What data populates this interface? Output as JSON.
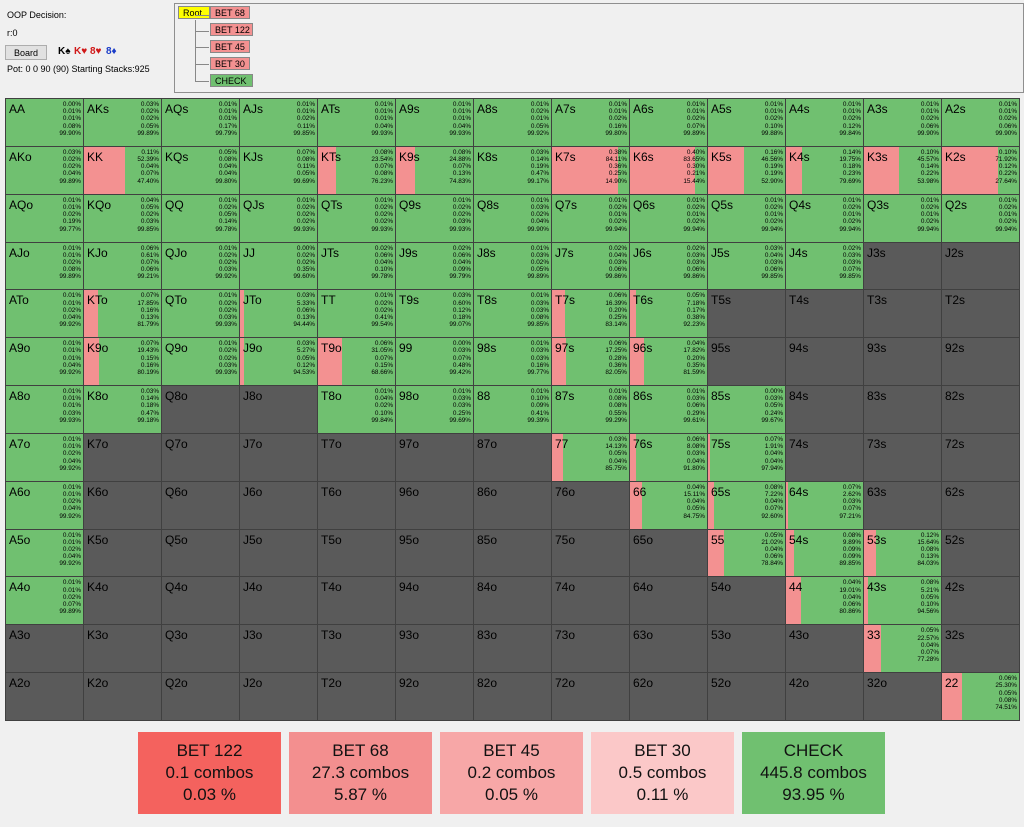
{
  "header": {
    "decision": "OOP Decision:",
    "r": "r:0",
    "board_button": "Board",
    "cards": [
      {
        "text": "K♠",
        "color": "#000000"
      },
      {
        "text": "K♥",
        "color": "#d01818"
      },
      {
        "text": "8♥",
        "color": "#d01818"
      },
      {
        "text": "8♦",
        "color": "#1a3cc8"
      }
    ],
    "pot": "Pot: 0 0 90 (90) Starting Stacks:925"
  },
  "tree": {
    "root": "Root",
    "children": [
      "BET 68",
      "BET 122",
      "BET 45",
      "BET 30",
      "CHECK"
    ],
    "colors": {
      "root": "#ffff00",
      "bet": "#f39191",
      "check": "#70c070"
    }
  },
  "grid": [
    [
      "AA",
      "0.00%|0.01%|0.01%|0.08%|99.90%",
      1.0
    ],
    [
      "AKs",
      "0.03%|0.02%|0.02%|0.05%|99.89%",
      1.0
    ],
    [
      "AQs",
      "0.01%|0.01%|0.01%|0.17%|99.79%",
      1.0
    ],
    [
      "AJs",
      "0.01%|0.01%|0.02%|0.11%|99.85%",
      1.0
    ],
    [
      "ATs",
      "0.01%|0.01%|0.01%|0.04%|99.93%",
      1.0
    ],
    [
      "A9s",
      "0.01%|0.01%|0.01%|0.04%|99.93%",
      1.0
    ],
    [
      "A8s",
      "0.01%|0.02%|0.01%|0.05%|99.92%",
      1.0
    ],
    [
      "A7s",
      "0.01%|0.01%|0.02%|0.16%|99.80%",
      1.0
    ],
    [
      "A6s",
      "0.01%|0.01%|0.02%|0.07%|99.89%",
      1.0
    ],
    [
      "A5s",
      "0.01%|0.01%|0.02%|0.10%|99.88%",
      1.0
    ],
    [
      "A4s",
      "0.01%|0.01%|0.02%|0.12%|99.84%",
      1.0
    ],
    [
      "A3s",
      "0.01%|0.01%|0.02%|0.06%|99.90%",
      1.0
    ],
    [
      "A2s",
      "0.01%|0.01%|0.02%|0.06%|99.90%",
      1.0
    ],
    [
      "AKo",
      "0.03%|0.02%|0.02%|0.04%|99.89%",
      1.0
    ],
    [
      "KK",
      "0.11%|52.39%|0.04%|0.07%|47.40%",
      0.474
    ],
    [
      "KQs",
      "0.05%|0.08%|0.04%|0.04%|99.80%",
      1.0
    ],
    [
      "KJs",
      "0.07%|0.08%|0.11%|0.05%|99.69%",
      1.0
    ],
    [
      "KTs",
      "0.08%|23.54%|0.07%|0.08%|76.23%",
      0.762
    ],
    [
      "K9s",
      "0.08%|24.88%|0.07%|0.13%|74.83%",
      0.748
    ],
    [
      "K8s",
      "0.03%|0.14%|0.19%|0.47%|99.17%",
      1.0
    ],
    [
      "K7s",
      "0.38%|84.11%|0.36%|0.25%|14.90%",
      0.149
    ],
    [
      "K6s",
      "0.40%|83.65%|0.30%|0.21%|15.44%",
      0.154
    ],
    [
      "K5s",
      "0.16%|46.56%|0.19%|0.19%|52.90%",
      0.529
    ],
    [
      "K4s",
      "0.14%|19.75%|0.18%|0.23%|79.69%",
      0.797
    ],
    [
      "K3s",
      "0.10%|45.57%|0.14%|0.22%|53.98%",
      0.54
    ],
    [
      "K2s",
      "0.10%|71.92%|0.12%|0.22%|27.64%",
      0.276
    ],
    [
      "AQo",
      "0.01%|0.01%|0.02%|0.19%|99.77%",
      1.0
    ],
    [
      "KQo",
      "0.04%|0.05%|0.02%|0.03%|99.85%",
      1.0
    ],
    [
      "QQ",
      "0.01%|0.02%|0.05%|0.14%|99.78%",
      1.0
    ],
    [
      "QJs",
      "0.01%|0.02%|0.02%|0.02%|99.93%",
      1.0
    ],
    [
      "QTs",
      "0.01%|0.02%|0.02%|0.02%|99.93%",
      1.0
    ],
    [
      "Q9s",
      "0.01%|0.02%|0.02%|0.03%|99.93%",
      1.0
    ],
    [
      "Q8s",
      "0.01%|0.03%|0.02%|0.04%|99.90%",
      1.0
    ],
    [
      "Q7s",
      "0.01%|0.02%|0.01%|0.02%|99.94%",
      1.0
    ],
    [
      "Q6s",
      "0.01%|0.02%|0.01%|0.02%|99.94%",
      1.0
    ],
    [
      "Q5s",
      "0.01%|0.02%|0.01%|0.02%|99.94%",
      1.0
    ],
    [
      "Q4s",
      "0.01%|0.02%|0.01%|0.02%|99.94%",
      1.0
    ],
    [
      "Q3s",
      "0.01%|0.02%|0.01%|0.02%|99.94%",
      1.0
    ],
    [
      "Q2s",
      "0.01%|0.02%|0.01%|0.02%|99.94%",
      1.0
    ],
    [
      "AJo",
      "0.01%|0.01%|0.02%|0.08%|99.89%",
      1.0
    ],
    [
      "KJo",
      "0.06%|0.61%|0.07%|0.06%|99.21%",
      1.0
    ],
    [
      "QJo",
      "0.01%|0.02%|0.02%|0.03%|99.92%",
      1.0
    ],
    [
      "JJ",
      "0.00%|0.02%|0.02%|0.35%|99.60%",
      1.0
    ],
    [
      "JTs",
      "0.02%|0.06%|0.04%|0.10%|99.78%",
      1.0
    ],
    [
      "J9s",
      "0.02%|0.06%|0.04%|0.09%|99.79%",
      1.0
    ],
    [
      "J8s",
      "0.01%|0.03%|0.02%|0.05%|99.89%",
      1.0
    ],
    [
      "J7s",
      "0.02%|0.04%|0.03%|0.06%|99.86%",
      1.0
    ],
    [
      "J6s",
      "0.02%|0.03%|0.03%|0.06%|99.86%",
      1.0
    ],
    [
      "J5s",
      "0.03%|0.04%|0.03%|0.06%|99.85%",
      1.0
    ],
    [
      "J4s",
      "0.02%|0.03%|0.03%|0.07%|99.85%",
      1.0
    ],
    [
      "J3s",
      "",
      0
    ],
    [
      "J2s",
      "",
      0
    ],
    [
      "ATo",
      "0.01%|0.01%|0.02%|0.04%|99.92%",
      1.0
    ],
    [
      "KTo",
      "0.07%|17.85%|0.16%|0.13%|81.79%",
      0.818
    ],
    [
      "QTo",
      "0.01%|0.02%|0.02%|0.03%|99.93%",
      1.0
    ],
    [
      "JTo",
      "0.03%|5.33%|0.06%|0.13%|94.44%",
      0.944
    ],
    [
      "TT",
      "0.01%|0.02%|0.02%|0.41%|99.54%",
      1.0
    ],
    [
      "T9s",
      "0.03%|0.60%|0.12%|0.18%|99.07%",
      1.0
    ],
    [
      "T8s",
      "0.01%|0.03%|0.03%|0.08%|99.85%",
      1.0
    ],
    [
      "T7s",
      "0.06%|16.39%|0.20%|0.25%|83.14%",
      0.831
    ],
    [
      "T6s",
      "0.05%|7.18%|0.17%|0.38%|92.23%",
      0.922
    ],
    [
      "T5s",
      "",
      0
    ],
    [
      "T4s",
      "",
      0
    ],
    [
      "T3s",
      "",
      0
    ],
    [
      "T2s",
      "",
      0
    ],
    [
      "A9o",
      "0.01%|0.01%|0.01%|0.04%|99.92%",
      1.0
    ],
    [
      "K9o",
      "0.07%|19.43%|0.15%|0.16%|80.19%",
      0.802
    ],
    [
      "Q9o",
      "0.01%|0.02%|0.02%|0.03%|99.93%",
      1.0
    ],
    [
      "J9o",
      "0.03%|5.27%|0.05%|0.12%|94.53%",
      0.945
    ],
    [
      "T9o",
      "0.06%|31.05%|0.07%|0.15%|68.66%",
      0.687
    ],
    [
      "99",
      "0.00%|0.03%|0.07%|0.48%|99.42%",
      1.0
    ],
    [
      "98s",
      "0.01%|0.03%|0.03%|0.16%|99.77%",
      1.0
    ],
    [
      "97s",
      "0.06%|17.25%|0.28%|0.36%|82.05%",
      0.82
    ],
    [
      "96s",
      "0.04%|17.82%|0.20%|0.35%|81.59%",
      0.816
    ],
    [
      "95s",
      "",
      0
    ],
    [
      "94s",
      "",
      0
    ],
    [
      "93s",
      "",
      0
    ],
    [
      "92s",
      "",
      0
    ],
    [
      "A8o",
      "0.01%|0.01%|0.01%|0.03%|99.93%",
      1.0
    ],
    [
      "K8o",
      "0.03%|0.14%|0.18%|0.47%|99.18%",
      1.0
    ],
    [
      "Q8o",
      "",
      0
    ],
    [
      "J8o",
      "",
      0
    ],
    [
      "T8o",
      "0.01%|0.04%|0.02%|0.10%|99.84%",
      1.0
    ],
    [
      "98o",
      "0.01%|0.03%|0.03%|0.25%|99.69%",
      1.0
    ],
    [
      "88",
      "0.01%|0.10%|0.09%|0.41%|99.39%",
      1.0
    ],
    [
      "87s",
      "0.01%|0.08%|0.08%|0.55%|99.29%",
      1.0
    ],
    [
      "86s",
      "0.01%|0.03%|0.06%|0.29%|99.61%",
      1.0
    ],
    [
      "85s",
      "0.00%|0.03%|0.05%|0.24%|99.67%",
      1.0
    ],
    [
      "84s",
      "",
      0
    ],
    [
      "83s",
      "",
      0
    ],
    [
      "82s",
      "",
      0
    ],
    [
      "A7o",
      "0.01%|0.01%|0.02%|0.04%|99.92%",
      1.0
    ],
    [
      "K7o",
      "",
      0
    ],
    [
      "Q7o",
      "",
      0
    ],
    [
      "J7o",
      "",
      0
    ],
    [
      "T7o",
      "",
      0
    ],
    [
      "97o",
      "",
      0
    ],
    [
      "87o",
      "",
      0
    ],
    [
      "77",
      "0.03%|14.13%|0.05%|0.04%|85.75%",
      0.858
    ],
    [
      "76s",
      "0.06%|8.08%|0.03%|0.04%|91.80%",
      0.918
    ],
    [
      "75s",
      "0.07%|1.91%|0.04%|0.04%|97.94%",
      0.979
    ],
    [
      "74s",
      "",
      0
    ],
    [
      "73s",
      "",
      0
    ],
    [
      "72s",
      "",
      0
    ],
    [
      "A6o",
      "0.01%|0.01%|0.02%|0.04%|99.92%",
      1.0
    ],
    [
      "K6o",
      "",
      0
    ],
    [
      "Q6o",
      "",
      0
    ],
    [
      "J6o",
      "",
      0
    ],
    [
      "T6o",
      "",
      0
    ],
    [
      "96o",
      "",
      0
    ],
    [
      "86o",
      "",
      0
    ],
    [
      "76o",
      "",
      0
    ],
    [
      "66",
      "0.04%|15.11%|0.04%|0.05%|84.75%",
      0.848
    ],
    [
      "65s",
      "0.08%|7.22%|0.04%|0.07%|92.60%",
      0.926
    ],
    [
      "64s",
      "0.07%|2.62%|0.03%|0.07%|97.21%",
      0.972
    ],
    [
      "63s",
      "",
      0
    ],
    [
      "62s",
      "",
      0
    ],
    [
      "A5o",
      "0.01%|0.01%|0.02%|0.04%|99.92%",
      1.0
    ],
    [
      "K5o",
      "",
      0
    ],
    [
      "Q5o",
      "",
      0
    ],
    [
      "J5o",
      "",
      0
    ],
    [
      "T5o",
      "",
      0
    ],
    [
      "95o",
      "",
      0
    ],
    [
      "85o",
      "",
      0
    ],
    [
      "75o",
      "",
      0
    ],
    [
      "65o",
      "",
      0
    ],
    [
      "55",
      "0.05%|21.02%|0.04%|0.06%|78.84%",
      0.788
    ],
    [
      "54s",
      "0.08%|9.89%|0.09%|0.09%|89.85%",
      0.899
    ],
    [
      "53s",
      "0.12%|15.64%|0.08%|0.13%|84.03%",
      0.84
    ],
    [
      "52s",
      "",
      0
    ],
    [
      "A4o",
      "0.01%|0.01%|0.02%|0.07%|99.89%",
      1.0
    ],
    [
      "K4o",
      "",
      0
    ],
    [
      "Q4o",
      "",
      0
    ],
    [
      "J4o",
      "",
      0
    ],
    [
      "T4o",
      "",
      0
    ],
    [
      "94o",
      "",
      0
    ],
    [
      "84o",
      "",
      0
    ],
    [
      "74o",
      "",
      0
    ],
    [
      "64o",
      "",
      0
    ],
    [
      "54o",
      "",
      0
    ],
    [
      "44",
      "0.04%|19.01%|0.04%|0.06%|80.86%",
      0.809
    ],
    [
      "43s",
      "0.08%|5.21%|0.05%|0.10%|94.56%",
      0.946
    ],
    [
      "42s",
      "",
      0
    ],
    [
      "A3o",
      "",
      0
    ],
    [
      "K3o",
      "",
      0
    ],
    [
      "Q3o",
      "",
      0
    ],
    [
      "J3o",
      "",
      0
    ],
    [
      "T3o",
      "",
      0
    ],
    [
      "93o",
      "",
      0
    ],
    [
      "83o",
      "",
      0
    ],
    [
      "73o",
      "",
      0
    ],
    [
      "63o",
      "",
      0
    ],
    [
      "53o",
      "",
      0
    ],
    [
      "43o",
      "",
      0
    ],
    [
      "33",
      "0.05%|22.57%|0.04%|0.07%|77.28%",
      0.773
    ],
    [
      "32s",
      "",
      0
    ],
    [
      "A2o",
      "",
      0
    ],
    [
      "K2o",
      "",
      0
    ],
    [
      "Q2o",
      "",
      0
    ],
    [
      "J2o",
      "",
      0
    ],
    [
      "T2o",
      "",
      0
    ],
    [
      "92o",
      "",
      0
    ],
    [
      "82o",
      "",
      0
    ],
    [
      "72o",
      "",
      0
    ],
    [
      "62o",
      "",
      0
    ],
    [
      "52o",
      "",
      0
    ],
    [
      "42o",
      "",
      0
    ],
    [
      "32o",
      "",
      0
    ],
    [
      "22",
      "0.06%|25.30%|0.05%|0.08%|74.51%",
      0.745
    ]
  ],
  "summary": [
    {
      "label": "BET 122",
      "combos": "0.1 combos",
      "pct": "0.03 %",
      "color": "#f4625e"
    },
    {
      "label": "BET 68",
      "combos": "27.3 combos",
      "pct": "5.87 %",
      "color": "#f38f8f"
    },
    {
      "label": "BET 45",
      "combos": "0.2 combos",
      "pct": "0.05 %",
      "color": "#f7a7a7"
    },
    {
      "label": "BET 30",
      "combos": "0.5 combos",
      "pct": "0.11 %",
      "color": "#fbc8c8"
    },
    {
      "label": "CHECK",
      "combos": "445.8 combos",
      "pct": "93.95 %",
      "color": "#70c070"
    }
  ]
}
